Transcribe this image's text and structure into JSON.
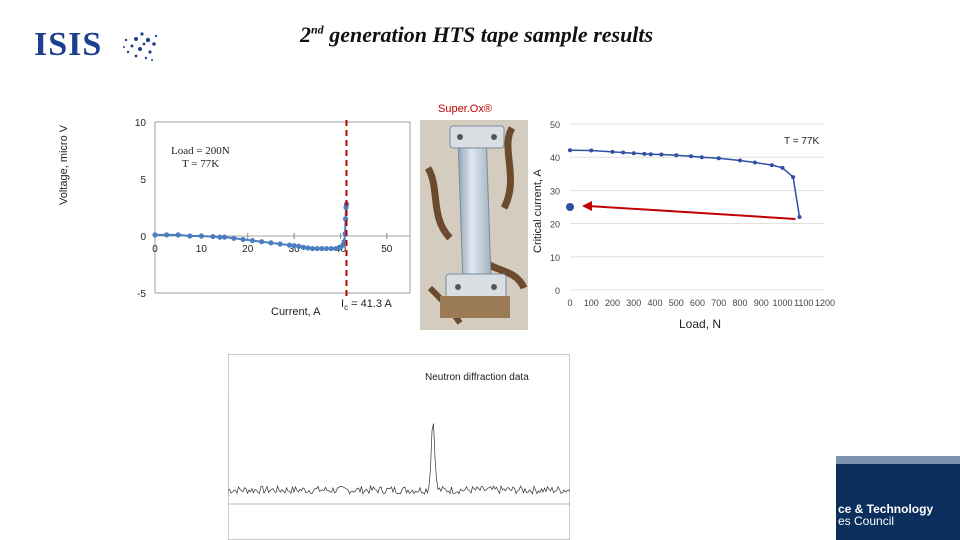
{
  "header": {
    "logo_text": "ISIS",
    "title_pre": "2",
    "title_sup": "nd",
    "title_post": " generation HTS tape sample results"
  },
  "left_chart": {
    "ylabel": "Voltage, micro V",
    "xlabel": "Current, A",
    "annotation_load": "Load = 200N",
    "annotation_temp": "T = 77K",
    "ic_label_pre": "I",
    "ic_label_sub": "c",
    "ic_label_post": " = 41.3 A",
    "colors": {
      "series": "#4a7ebf",
      "critical_line": "#c00000"
    }
  },
  "photo": {
    "label": "Super.Ox®"
  },
  "right_chart": {
    "ylabel": "Critical current, A",
    "xlabel": "Load, N",
    "annotation": "T = 77K",
    "colors": {
      "series": "#2e4fa3",
      "arrow": "#c00000"
    }
  },
  "neutron": {
    "label": "Neutron diffraction data"
  },
  "footer": {
    "line1": "ce & Technology",
    "line2": "es Council"
  },
  "chart_data": [
    {
      "type": "line",
      "xlabel": "Current, A",
      "ylabel": "Voltage, micro V",
      "xlim": [
        0,
        55
      ],
      "ylim": [
        -5,
        10
      ],
      "x_ticks": [
        "0",
        "10",
        "20",
        "30",
        "40",
        "50"
      ],
      "y_ticks": [
        "-5",
        "0",
        "5",
        "10"
      ],
      "series": [
        {
          "x": [
            0,
            2.5,
            5,
            7.5,
            10,
            12.5,
            14,
            15,
            17,
            19,
            21,
            23,
            25,
            27,
            29,
            30,
            31,
            32,
            33,
            34,
            35,
            36,
            37,
            38,
            39,
            40,
            40.5,
            40.8,
            41,
            41.1,
            41.2,
            41.3
          ],
          "y": [
            0.1,
            0.1,
            0.1,
            0.0,
            0.0,
            -0.05,
            -0.1,
            -0.1,
            -0.2,
            -0.3,
            -0.4,
            -0.5,
            -0.6,
            -0.7,
            -0.8,
            -0.85,
            -0.9,
            -1.0,
            -1.05,
            -1.1,
            -1.1,
            -1.1,
            -1.1,
            -1.1,
            -1.1,
            -1.0,
            -0.8,
            -0.5,
            0.2,
            1.5,
            2.5,
            2.8
          ]
        }
      ],
      "critical_current": 41.3
    },
    {
      "type": "line",
      "xlabel": "Load, N",
      "ylabel": "Critical current, A",
      "xlim": [
        0,
        1200
      ],
      "ylim": [
        0,
        50
      ],
      "x_ticks": [
        "0",
        "100",
        "200",
        "300",
        "400",
        "500",
        "600",
        "700",
        "800",
        "900",
        "1000",
        "1100",
        "1200"
      ],
      "y_ticks": [
        "0",
        "10",
        "20",
        "30",
        "40",
        "50"
      ],
      "series": [
        {
          "x": [
            0,
            100,
            200,
            250,
            300,
            350,
            380,
            430,
            500,
            570,
            620,
            700,
            800,
            870,
            950,
            1000,
            1050,
            1080
          ],
          "y": [
            42.1,
            42.0,
            41.6,
            41.4,
            41.2,
            41.0,
            40.9,
            40.8,
            40.6,
            40.3,
            40.0,
            39.7,
            39.0,
            38.4,
            37.6,
            36.8,
            34.0,
            22.0
          ]
        }
      ],
      "highlight_point": {
        "x": 0,
        "y": 25
      }
    }
  ]
}
